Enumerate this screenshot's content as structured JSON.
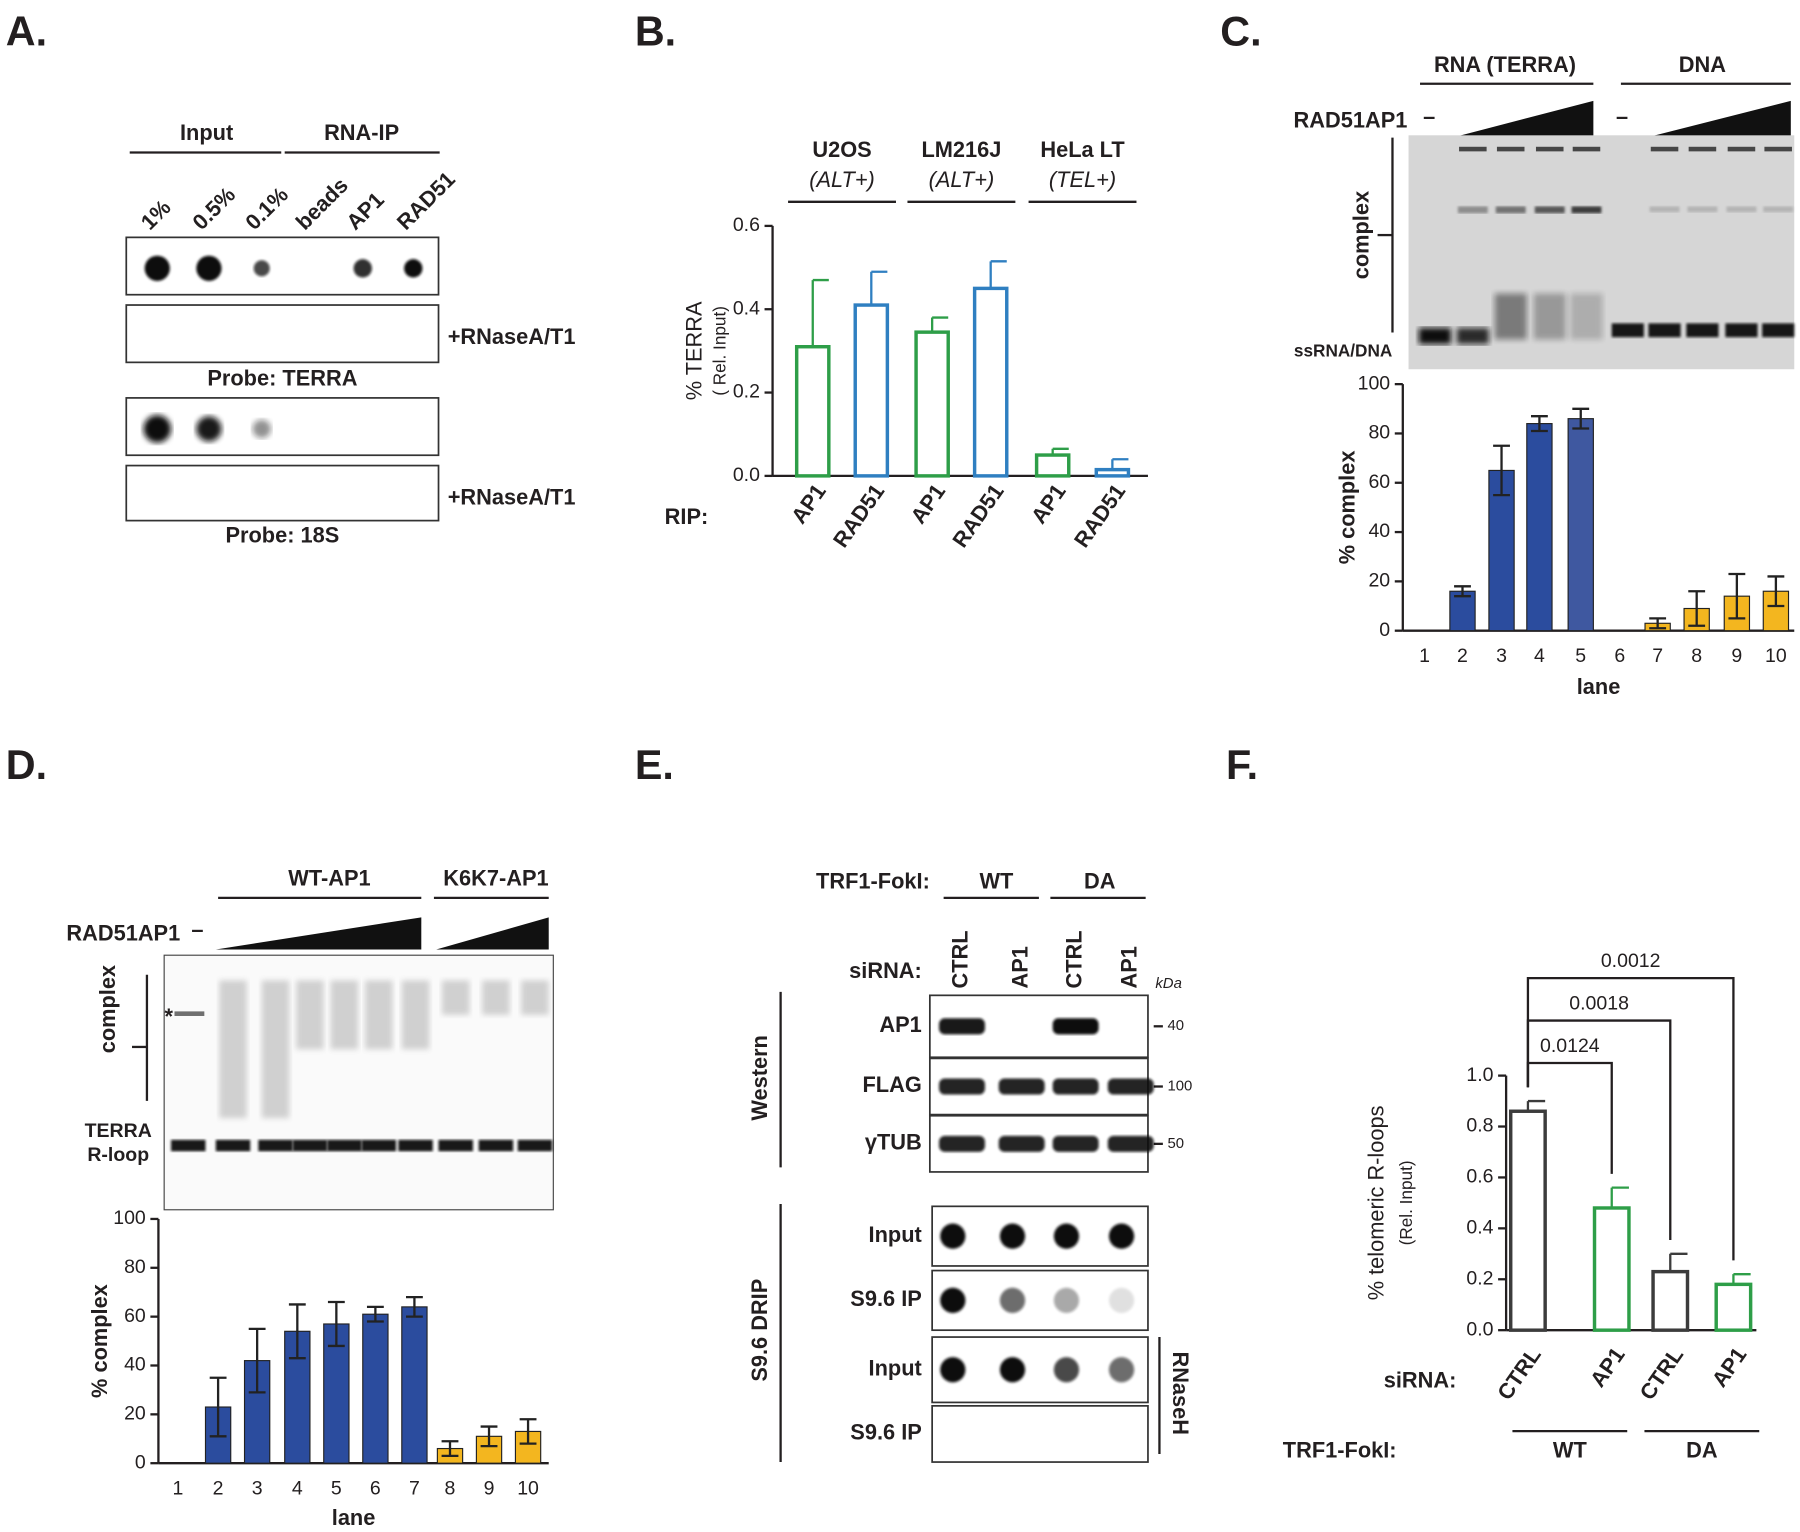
{
  "panel_labels": [
    "A.",
    "B.",
    "C.",
    "D.",
    "E.",
    "F."
  ],
  "panel_a": {
    "groups": [
      "Input",
      "RNA-IP"
    ],
    "lanes": [
      "1%",
      "0.5%",
      "0.1%",
      "beads",
      "AP1",
      "RAD51"
    ],
    "treatments": [
      "+RNaseA/T1",
      "+RNaseA/T1"
    ],
    "probes": [
      "Probe: TERRA",
      "Probe: 18S"
    ]
  },
  "panel_c_gel": {
    "groups": [
      "RNA (TERRA)",
      "DNA"
    ],
    "protein": "RAD51AP1",
    "minus": [
      "–",
      "–"
    ],
    "complex": "complex",
    "free": "ssRNA/DNA"
  },
  "panel_d_gel": {
    "groups": [
      "WT-AP1",
      "K6K7-AP1"
    ],
    "protein": "RAD51AP1",
    "minus": "–",
    "asterisk": "*",
    "complex": "complex",
    "free": [
      "TERRA",
      "R-loop"
    ]
  },
  "panel_e": {
    "construct_label": "TRF1-FokI:",
    "constructs": [
      "WT",
      "DA"
    ],
    "sirna_label": "siRNA:",
    "sirnas": [
      "CTRL",
      "AP1",
      "CTRL",
      "AP1"
    ],
    "kda": "kDa",
    "western_label": "Western",
    "western_rows": [
      {
        "label": "AP1",
        "kda": 40
      },
      {
        "label": "FLAG",
        "kda": 100
      },
      {
        "label": "γTUB",
        "kda": 50
      }
    ],
    "drip_label": "S9.6 DRIP",
    "drip_rows": [
      "Input",
      "S9.6 IP",
      "Input",
      "S9.6 IP"
    ],
    "rnaseh": "RNaseH"
  },
  "chart_data": [
    {
      "type": "bar",
      "outline": true,
      "error_direction": "up",
      "groups": [
        {
          "name": "U2OS",
          "subtitle": "(ALT+)"
        },
        {
          "name": "LM216J",
          "subtitle": "(ALT+)"
        },
        {
          "name": "HeLa LT",
          "subtitle": "(TEL+)"
        }
      ],
      "x_prefix": "RIP:",
      "categories": [
        "AP1",
        "RAD51",
        "AP1",
        "RAD51",
        "AP1",
        "RAD51"
      ],
      "values": [
        0.31,
        0.41,
        0.345,
        0.45,
        0.05,
        0.015
      ],
      "errors": [
        0.16,
        0.08,
        0.035,
        0.065,
        0.015,
        0.025
      ],
      "colors": [
        "#2e9e48",
        "#2f7fc1",
        "#2e9e48",
        "#2f7fc1",
        "#2e9e48",
        "#2f7fc1"
      ],
      "ylabel": "% TERRA",
      "ylabel_sub": "( Rel. Input)",
      "ylim": [
        0,
        0.6
      ],
      "yticks": [
        {
          "value": 0,
          "label": "0.0"
        },
        0.2,
        0.4,
        0.6
      ]
    },
    {
      "type": "bar",
      "outline": false,
      "error_direction": "both",
      "categories": [
        "1",
        "2",
        "3",
        "4",
        "5",
        "6",
        "7",
        "8",
        "9",
        "10"
      ],
      "values": [
        null,
        16,
        65,
        84,
        86,
        null,
        3,
        9,
        14,
        16
      ],
      "errors": [
        null,
        2,
        10,
        3,
        4,
        null,
        2,
        7,
        9,
        6
      ],
      "colors": [
        null,
        "#2b4c9e",
        "#2b4c9e",
        "#2b4c9e",
        "#3f58a0",
        null,
        "#f3b61f",
        "#f3b61f",
        "#f3b61f",
        "#f3b61f"
      ],
      "xlabel": "lane",
      "ylabel": "% complex",
      "ylim": [
        0,
        100
      ],
      "yticks": [
        0,
        20,
        40,
        60,
        80,
        100
      ]
    },
    {
      "type": "bar",
      "outline": false,
      "error_direction": "both",
      "categories": [
        "1",
        "2",
        "3",
        "4",
        "5",
        "6",
        "7",
        "8",
        "9",
        "10"
      ],
      "values": [
        null,
        23,
        42,
        54,
        57,
        61,
        64,
        6,
        11,
        13
      ],
      "errors": [
        null,
        12,
        13,
        11,
        9,
        3,
        4,
        3,
        4,
        5
      ],
      "colors": [
        null,
        "#2b4c9e",
        "#2b4c9e",
        "#2b4c9e",
        "#2b4c9e",
        "#2b4c9e",
        "#2b4c9e",
        "#f3b61f",
        "#f3b61f",
        "#f3b61f"
      ],
      "xlabel": "lane",
      "ylabel": "% complex",
      "ylim": [
        0,
        100
      ],
      "yticks": [
        0,
        20,
        40,
        60,
        80,
        100
      ]
    },
    {
      "type": "bar",
      "outline": true,
      "error_direction": "up",
      "x_prefix": "siRNA:",
      "categories": [
        "CTRL",
        "AP1",
        "CTRL",
        "AP1"
      ],
      "group_prefix": "TRF1-FokI:",
      "groups": [
        {
          "name": "WT"
        },
        {
          "name": "DA"
        }
      ],
      "values": [
        0.86,
        0.48,
        0.23,
        0.18
      ],
      "errors": [
        0.04,
        0.08,
        0.07,
        0.04
      ],
      "colors": [
        "#3c3c3c",
        "#2e9e48",
        "#3c3c3c",
        "#2e9e48"
      ],
      "ylabel": "% telomeric R-loops",
      "ylabel_sub": "(Rel. Input)",
      "ylim": [
        0,
        1
      ],
      "yticks": [
        {
          "value": 0,
          "label": "0.0"
        },
        0.2,
        0.4,
        0.6,
        0.8,
        {
          "value": 1,
          "label": "1.0"
        }
      ],
      "p_values": [
        0.0124,
        0.0018,
        0.0012
      ]
    }
  ]
}
